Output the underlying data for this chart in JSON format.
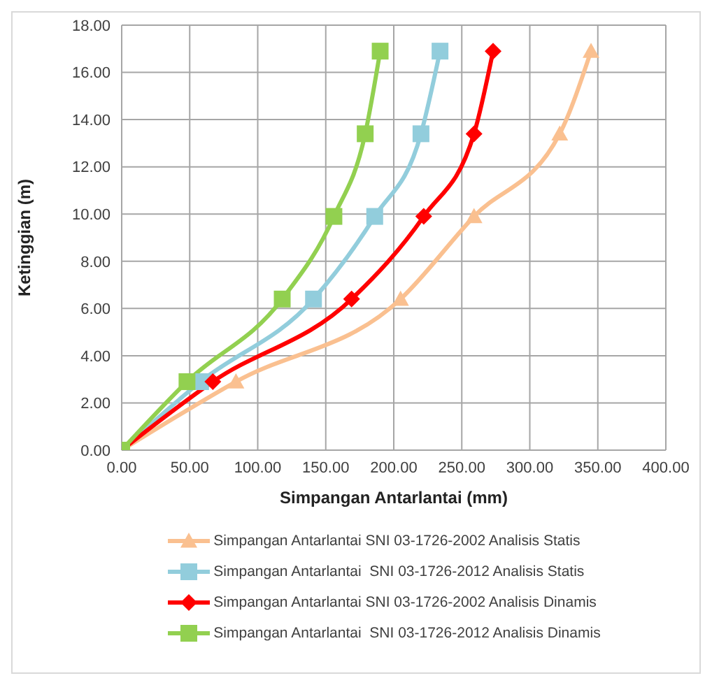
{
  "chart_data": {
    "type": "line",
    "xlabel": "Simpangan Antarlantai (mm)",
    "ylabel": "Ketinggian (m)",
    "xlim": [
      0,
      400
    ],
    "xticks": [
      {
        "value": 0,
        "label": "0.00"
      },
      {
        "value": 50,
        "label": "50.00"
      },
      {
        "value": 100,
        "label": "100.00"
      },
      {
        "value": 150,
        "label": "150.00"
      },
      {
        "value": 200,
        "label": "200.00"
      },
      {
        "value": 250,
        "label": "250.00"
      },
      {
        "value": 300,
        "label": "300.00"
      },
      {
        "value": 350,
        "label": "350.00"
      },
      {
        "value": 400,
        "label": "400.00"
      }
    ],
    "ylim": [
      0,
      18
    ],
    "yticks": [
      {
        "value": 0,
        "label": "0.00"
      },
      {
        "value": 2,
        "label": "2.00"
      },
      {
        "value": 4,
        "label": "4.00"
      },
      {
        "value": 6,
        "label": "6.00"
      },
      {
        "value": 8,
        "label": "8.00"
      },
      {
        "value": 10,
        "label": "10.00"
      },
      {
        "value": 12,
        "label": "12.00"
      },
      {
        "value": 14,
        "label": "14.00"
      },
      {
        "value": 16,
        "label": "16.00"
      },
      {
        "value": 18,
        "label": "18.00"
      }
    ],
    "grid": true,
    "legend": "bottom",
    "series": [
      {
        "name": "Simpangan Antarlantai SNI 03-1726-2002 Analisis Statis",
        "color": "#fac090",
        "marker": "triangle",
        "x": [
          0,
          84,
          205,
          259,
          322,
          345
        ],
        "values": [
          0,
          2.9,
          6.4,
          9.9,
          13.4,
          16.9
        ]
      },
      {
        "name": "Simpangan Antarlantai  SNI 03-1726-2012 Analisis Statis",
        "color": "#92cddc",
        "marker": "square",
        "x": [
          0,
          58,
          141,
          186,
          220,
          234
        ],
        "values": [
          0,
          2.9,
          6.4,
          9.9,
          13.4,
          16.9
        ]
      },
      {
        "name": "Simpangan Antarlantai SNI 03-1726-2002 Analisis Dinamis",
        "color": "#ff0000",
        "marker": "diamond",
        "x": [
          0,
          67,
          169,
          222,
          259,
          273
        ],
        "values": [
          0,
          2.9,
          6.4,
          9.9,
          13.4,
          16.9
        ]
      },
      {
        "name": "Simpangan Antarlantai  SNI 03-1726-2012 Analisis Dinamis",
        "color": "#92d050",
        "marker": "square",
        "x": [
          0,
          48,
          118,
          156,
          179,
          190
        ],
        "values": [
          0,
          2.9,
          6.4,
          9.9,
          13.4,
          16.9
        ]
      }
    ]
  }
}
